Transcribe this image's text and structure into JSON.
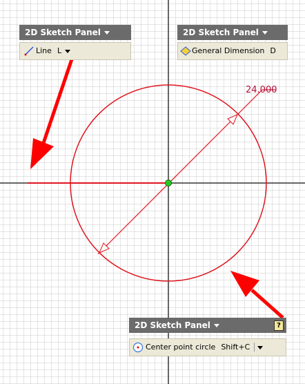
{
  "panels": [
    {
      "title": "2D Sketch Panel",
      "tool": "Line",
      "shortcut": "L"
    },
    {
      "title": "2D Sketch Panel",
      "tool": "General Dimension",
      "shortcut": "D"
    },
    {
      "title": "2D Sketch Panel",
      "tool": "Center point circle",
      "shortcut": "Shift+C"
    }
  ],
  "dimension": "24.000"
}
